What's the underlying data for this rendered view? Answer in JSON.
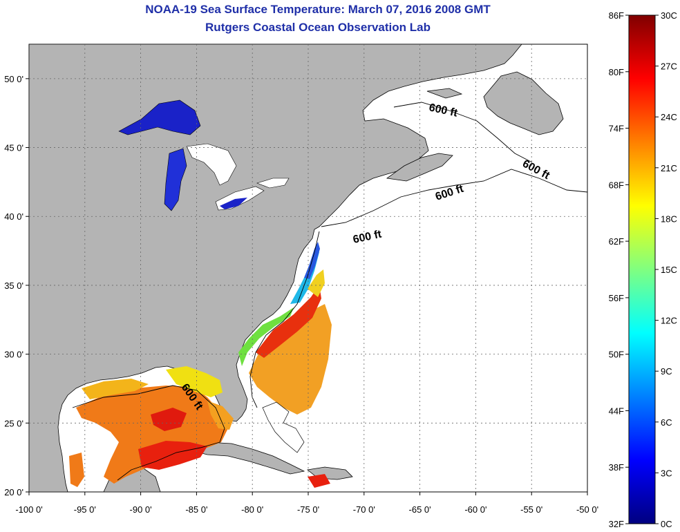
{
  "title": "NOAA-19 Sea Surface Temperature:  March 07, 2016 2008 GMT",
  "subtitle": "Rutgers Coastal Ocean Observation Lab",
  "map": {
    "type": "sea-surface-temperature-map",
    "lon_range": [
      -100,
      -50
    ],
    "lat_range": [
      20,
      52.5
    ],
    "lon_ticks": [
      "-100 0'",
      "-95 0'",
      "-90 0'",
      "-85 0'",
      "-80 0'",
      "-75 0'",
      "-70 0'",
      "-65 0'",
      "-60 0'",
      "-55 0'",
      "-50 0'"
    ],
    "lon_values": [
      -100,
      -95,
      -90,
      -85,
      -80,
      -75,
      -70,
      -65,
      -60,
      -55,
      -50
    ],
    "lat_ticks": [
      "20 0'",
      "25 0'",
      "30 0'",
      "35 0'",
      "40 0'",
      "45 0'",
      "50 0'"
    ],
    "lat_values": [
      20,
      25,
      30,
      35,
      40,
      45,
      50
    ],
    "grid": true,
    "land_color": "#b4b4b4",
    "no_data_color": "#ffffff",
    "contour_labels": [
      "600 ft",
      "600 ft",
      "600 ft",
      "600 ft",
      "600 ft"
    ]
  },
  "colorbar": {
    "fahrenheit": [
      "86F",
      "80F",
      "74F",
      "68F",
      "62F",
      "56F",
      "50F",
      "44F",
      "38F",
      "32F"
    ],
    "celsius": [
      "30C",
      "27C",
      "24C",
      "21C",
      "18C",
      "15C",
      "12C",
      "9C",
      "6C",
      "3C",
      "0C"
    ],
    "colors": [
      "#000080",
      "#0000ff",
      "#0080ff",
      "#00ffff",
      "#80ff80",
      "#ffff00",
      "#ff8000",
      "#ff0000",
      "#800000"
    ]
  }
}
